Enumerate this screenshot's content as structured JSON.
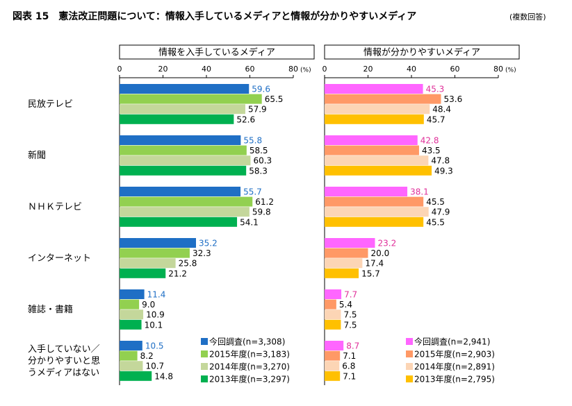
{
  "title": "図表 15　憲法改正問題について：情報入手しているメディアと情報が分かりやすいメディア",
  "subtitle": "(複数回答)",
  "chart_data": [
    {
      "type": "bar",
      "orientation": "horizontal",
      "title": "情報を入手しているメディア",
      "xlabel": "(%)",
      "categories": [
        "民放テレビ",
        "新聞",
        "ＮＨＫテレビ",
        "インターネット",
        "雑誌・書籍",
        "入手していない／分かりやすいと思うメディアはない"
      ],
      "xlim": [
        0,
        80
      ],
      "xticks": [
        0,
        20,
        40,
        60,
        80
      ],
      "grid": false,
      "legend": "lower right",
      "series": [
        {
          "name": "今回調査(n=3,308)",
          "color": "#1f6fc5",
          "label_color": "#1f6fc5",
          "values": [
            59.6,
            55.8,
            55.7,
            35.2,
            11.4,
            10.5
          ],
          "value_labels": [
            "59.6",
            "55.8",
            "55.7",
            "35.2",
            "11.4",
            "10.5"
          ]
        },
        {
          "name": "2015年度(n=3,183)",
          "color": "#92d050",
          "label_color": "#000000",
          "values": [
            65.5,
            58.5,
            61.2,
            32.3,
            9.0,
            8.2
          ],
          "value_labels": [
            "65.5",
            "58.5",
            "61.2",
            "32.3",
            "9.0",
            "8.2"
          ]
        },
        {
          "name": "2014年度(n=3,270)",
          "color": "#c4d79b",
          "label_color": "#000000",
          "values": [
            57.9,
            60.3,
            59.8,
            25.8,
            10.9,
            10.7
          ],
          "value_labels": [
            "57.9",
            "60.3",
            "59.8",
            "25.8",
            "10.9",
            "10.7"
          ]
        },
        {
          "name": "2013年度(n=3,297)",
          "color": "#00b050",
          "label_color": "#000000",
          "values": [
            52.6,
            58.3,
            54.1,
            21.2,
            10.1,
            14.8
          ],
          "value_labels": [
            "52.6",
            "58.3",
            "54.1",
            "21.2",
            "10.1",
            "14.8"
          ]
        }
      ]
    },
    {
      "type": "bar",
      "orientation": "horizontal",
      "title": "情報が分かりやすいメディア",
      "xlabel": "(%)",
      "xlim": [
        0,
        80
      ],
      "xticks": [
        0,
        20,
        40,
        60,
        80
      ],
      "grid": false,
      "legend": "lower right",
      "series": [
        {
          "name": "今回調査(n=2,941)",
          "color": "#ff66ff",
          "label_color": "#e0309a",
          "values": [
            45.3,
            42.8,
            38.1,
            23.2,
            7.7,
            8.7
          ],
          "value_labels": [
            "45.3",
            "42.8",
            "38.1",
            "23.2",
            "7.7",
            "8.7"
          ]
        },
        {
          "name": "2015年度(n=2,903)",
          "color": "#ff9966",
          "label_color": "#000000",
          "values": [
            53.6,
            43.5,
            45.5,
            20.0,
            5.4,
            7.1
          ],
          "value_labels": [
            "53.6",
            "43.5",
            "45.5",
            "20.0",
            "5.4",
            "7.1"
          ]
        },
        {
          "name": "2014年度(n=2,891)",
          "color": "#fcd5b5",
          "label_color": "#000000",
          "values": [
            48.4,
            47.8,
            47.9,
            17.4,
            7.5,
            6.8
          ],
          "value_labels": [
            "48.4",
            "47.8",
            "47.9",
            "17.4",
            "7.5",
            "6.8"
          ]
        },
        {
          "name": "2013年度(n=2,795)",
          "color": "#ffc000",
          "label_color": "#000000",
          "values": [
            45.7,
            49.3,
            45.5,
            15.7,
            7.5,
            7.1
          ],
          "value_labels": [
            "45.7",
            "49.3",
            "45.5",
            "15.7",
            "7.5",
            "7.1"
          ]
        }
      ]
    }
  ]
}
